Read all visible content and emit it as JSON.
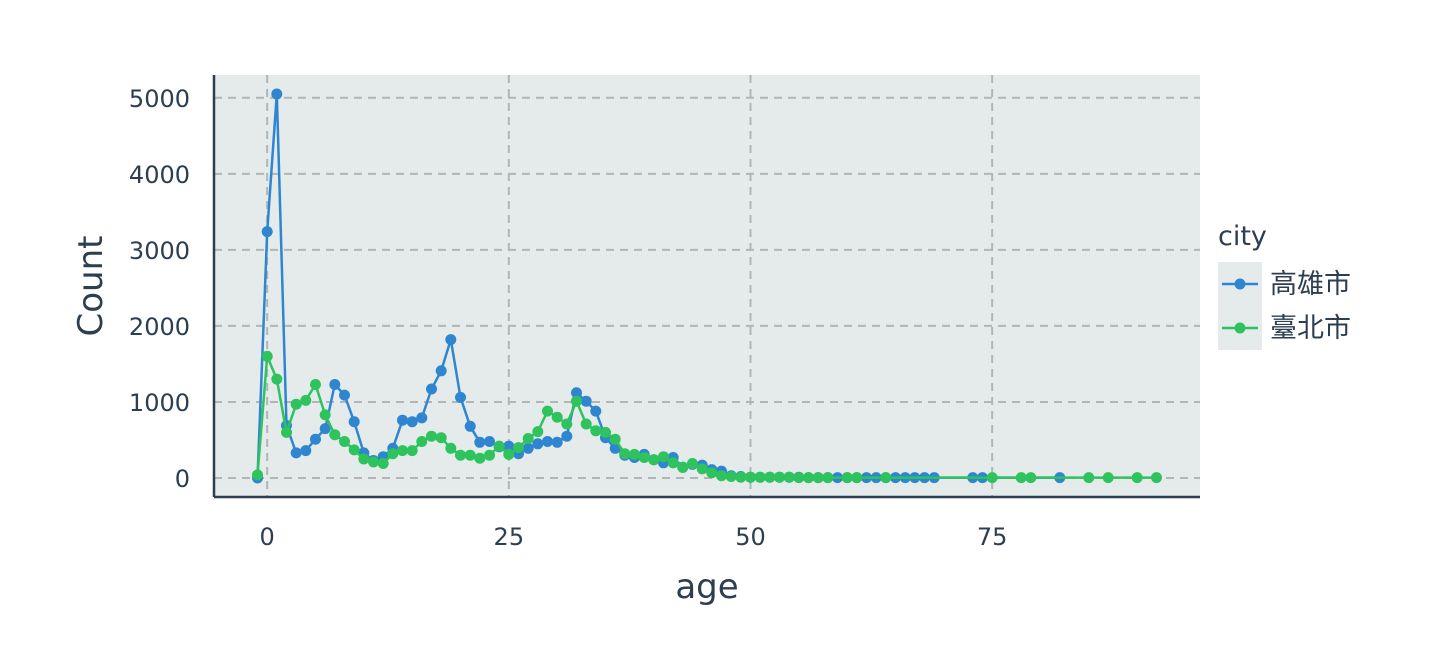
{
  "chart_data": {
    "type": "line",
    "title": "",
    "xlabel": "age",
    "ylabel": "Count",
    "xlim": [
      -5.5,
      96.5
    ],
    "ylim": [
      -250,
      5300
    ],
    "x_ticks": [
      0,
      25,
      50,
      75
    ],
    "y_ticks": [
      0,
      1000,
      2000,
      3000,
      4000,
      5000
    ],
    "grid": true,
    "legend": {
      "title": "city",
      "position": "right"
    },
    "series": [
      {
        "name": "高雄市",
        "color": "#2e86d1",
        "points": [
          [
            -1,
            0
          ],
          [
            0,
            3240
          ],
          [
            1,
            5050
          ],
          [
            2,
            690
          ],
          [
            3,
            330
          ],
          [
            4,
            360
          ],
          [
            5,
            510
          ],
          [
            6,
            650
          ],
          [
            7,
            1230
          ],
          [
            8,
            1090
          ],
          [
            9,
            740
          ],
          [
            10,
            330
          ],
          [
            11,
            230
          ],
          [
            12,
            280
          ],
          [
            13,
            390
          ],
          [
            14,
            760
          ],
          [
            15,
            740
          ],
          [
            16,
            790
          ],
          [
            17,
            1170
          ],
          [
            18,
            1410
          ],
          [
            19,
            1820
          ],
          [
            20,
            1060
          ],
          [
            21,
            680
          ],
          [
            22,
            470
          ],
          [
            23,
            480
          ],
          [
            24,
            410
          ],
          [
            25,
            420
          ],
          [
            26,
            320
          ],
          [
            27,
            390
          ],
          [
            28,
            450
          ],
          [
            29,
            480
          ],
          [
            30,
            470
          ],
          [
            31,
            550
          ],
          [
            32,
            1120
          ],
          [
            33,
            1010
          ],
          [
            34,
            880
          ],
          [
            35,
            530
          ],
          [
            36,
            390
          ],
          [
            37,
            300
          ],
          [
            38,
            270
          ],
          [
            39,
            310
          ],
          [
            40,
            240
          ],
          [
            41,
            200
          ],
          [
            42,
            270
          ],
          [
            43,
            140
          ],
          [
            44,
            180
          ],
          [
            45,
            170
          ],
          [
            46,
            110
          ],
          [
            47,
            90
          ],
          [
            48,
            30
          ],
          [
            49,
            20
          ],
          [
            50,
            10
          ],
          [
            51,
            10
          ],
          [
            52,
            10
          ],
          [
            53,
            10
          ],
          [
            54,
            10
          ],
          [
            55,
            10
          ],
          [
            56,
            5
          ],
          [
            57,
            5
          ],
          [
            58,
            5
          ],
          [
            59,
            5
          ],
          [
            60,
            5
          ],
          [
            61,
            5
          ],
          [
            62,
            5
          ],
          [
            63,
            5
          ],
          [
            64,
            5
          ],
          [
            65,
            5
          ],
          [
            66,
            5
          ],
          [
            67,
            5
          ],
          [
            68,
            5
          ],
          [
            69,
            5
          ],
          [
            73,
            5
          ],
          [
            74,
            5
          ],
          [
            82,
            5
          ]
        ]
      },
      {
        "name": "臺北市",
        "color": "#2ec35c",
        "points": [
          [
            -1,
            40
          ],
          [
            0,
            1600
          ],
          [
            1,
            1300
          ],
          [
            2,
            600
          ],
          [
            3,
            970
          ],
          [
            4,
            1020
          ],
          [
            5,
            1230
          ],
          [
            6,
            830
          ],
          [
            7,
            570
          ],
          [
            8,
            480
          ],
          [
            9,
            370
          ],
          [
            10,
            250
          ],
          [
            11,
            210
          ],
          [
            12,
            190
          ],
          [
            13,
            320
          ],
          [
            14,
            360
          ],
          [
            15,
            360
          ],
          [
            16,
            480
          ],
          [
            17,
            550
          ],
          [
            18,
            530
          ],
          [
            19,
            390
          ],
          [
            20,
            300
          ],
          [
            21,
            300
          ],
          [
            22,
            260
          ],
          [
            23,
            300
          ],
          [
            24,
            420
          ],
          [
            25,
            310
          ],
          [
            26,
            400
          ],
          [
            27,
            520
          ],
          [
            28,
            610
          ],
          [
            29,
            880
          ],
          [
            30,
            800
          ],
          [
            31,
            710
          ],
          [
            32,
            1010
          ],
          [
            33,
            710
          ],
          [
            34,
            620
          ],
          [
            35,
            600
          ],
          [
            36,
            510
          ],
          [
            37,
            320
          ],
          [
            38,
            310
          ],
          [
            39,
            270
          ],
          [
            40,
            240
          ],
          [
            41,
            280
          ],
          [
            42,
            200
          ],
          [
            43,
            140
          ],
          [
            44,
            190
          ],
          [
            45,
            120
          ],
          [
            46,
            70
          ],
          [
            47,
            30
          ],
          [
            48,
            20
          ],
          [
            49,
            10
          ],
          [
            50,
            10
          ],
          [
            51,
            10
          ],
          [
            52,
            10
          ],
          [
            53,
            10
          ],
          [
            54,
            10
          ],
          [
            55,
            5
          ],
          [
            56,
            5
          ],
          [
            57,
            5
          ],
          [
            58,
            5
          ],
          [
            60,
            5
          ],
          [
            61,
            5
          ],
          [
            64,
            5
          ],
          [
            75,
            5
          ],
          [
            78,
            5
          ],
          [
            79,
            5
          ],
          [
            85,
            5
          ],
          [
            87,
            5
          ],
          [
            90,
            5
          ],
          [
            92,
            5
          ]
        ]
      }
    ]
  }
}
